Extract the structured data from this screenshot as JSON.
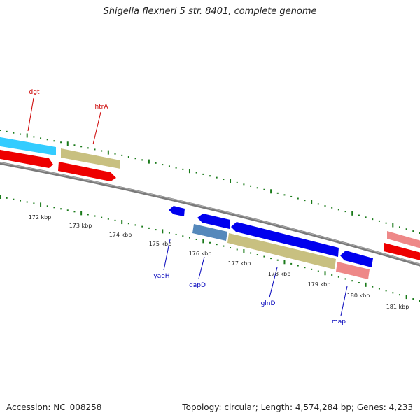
{
  "title": "Shigella flexneri 5 str. 8401, complete genome",
  "footer": {
    "accession": "Accession: NC_008258",
    "summary": "Topology: circular; Length: 4,574,284 bp; Genes: 4,233"
  },
  "colors": {
    "backbone": "#7a7a7a",
    "tick": "#1a7a1a",
    "gene_label_red": "#cc0000",
    "gene_label_blue": "#0000bb",
    "cyan": "#33ccff",
    "red": "#ee0000",
    "khaki": "#c8c080",
    "blue": "#0000ee",
    "steel": "#5588bb",
    "pink": "#ee8888"
  },
  "scale_labels": [
    "172 kbp",
    "173 kbp",
    "174 kbp",
    "175 kbp",
    "176 kbp",
    "177 kbp",
    "178 kbp",
    "179 kbp",
    "180 kbp",
    "181 kbp"
  ],
  "gene_labels_top": [
    {
      "text": "dgt",
      "color": "red"
    },
    {
      "text": "htrA",
      "color": "red"
    }
  ],
  "gene_labels_bottom": [
    {
      "text": "yaeH",
      "color": "blue"
    },
    {
      "text": "dapD",
      "color": "blue"
    },
    {
      "text": "glnD",
      "color": "blue"
    },
    {
      "text": "map",
      "color": "blue"
    }
  ]
}
